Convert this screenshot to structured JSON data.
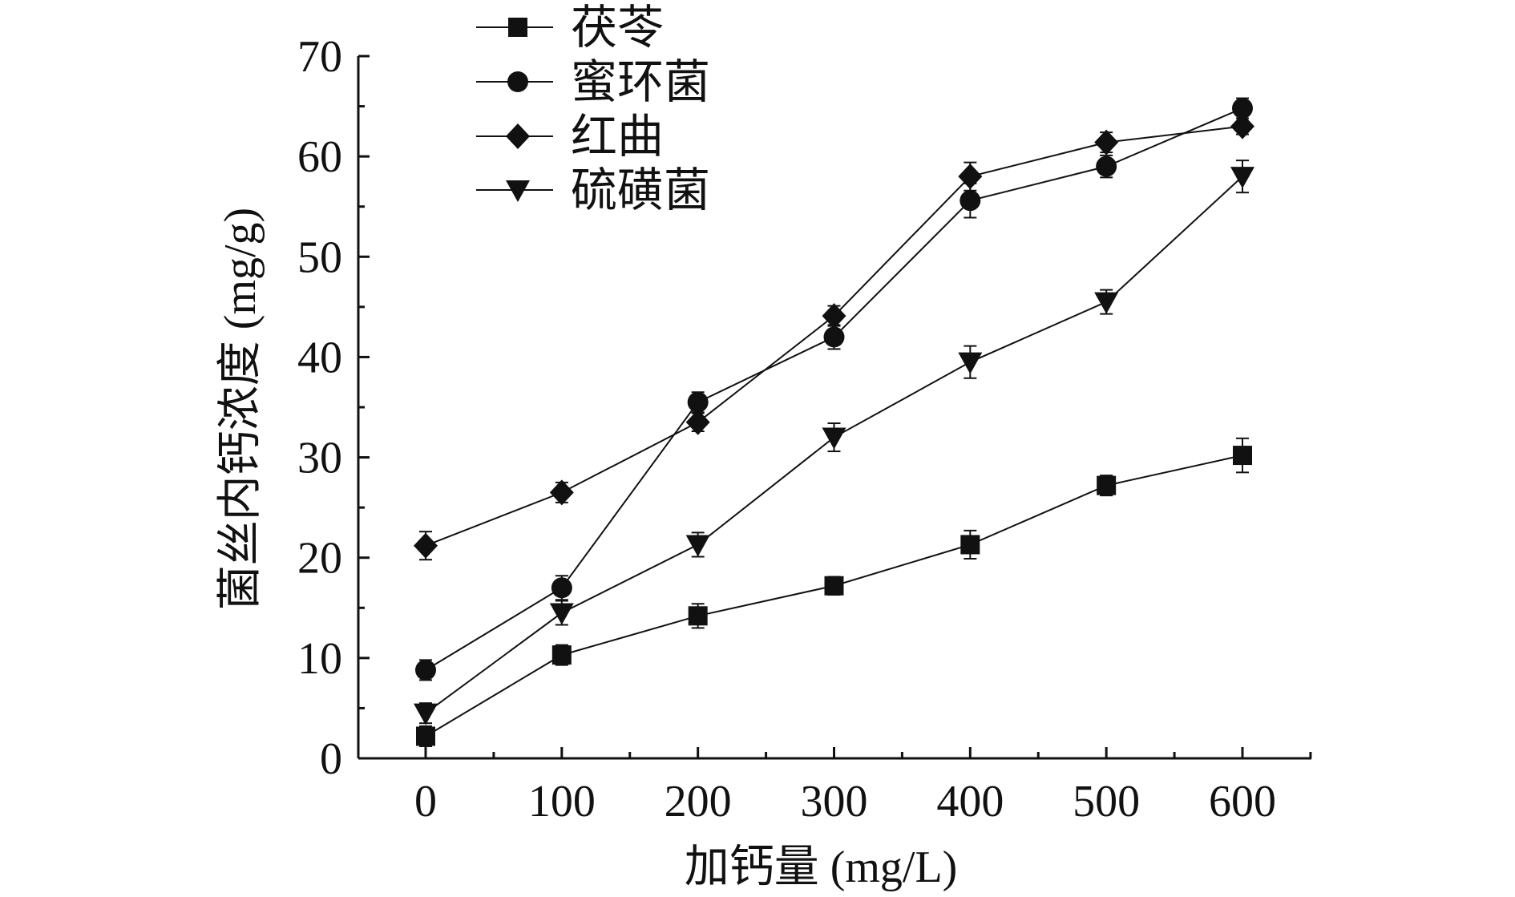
{
  "chart_data": {
    "type": "line",
    "title": "",
    "xlabel": "加钙量 (mg/L)",
    "ylabel": "菌丝内钙浓度 (mg/g)",
    "x": [
      0,
      100,
      200,
      300,
      400,
      500,
      600
    ],
    "xticks": [
      "0",
      "100",
      "200",
      "300",
      "400",
      "500",
      "600"
    ],
    "yticks": [
      "0",
      "10",
      "20",
      "30",
      "40",
      "50",
      "60",
      "70"
    ],
    "xlim": [
      -50,
      650
    ],
    "ylim": [
      0,
      70
    ],
    "grid": false,
    "legend_position": "top-left",
    "series": [
      {
        "name": "茯苓",
        "marker": "square",
        "values": [
          2.2,
          10.3,
          14.2,
          17.2,
          21.3,
          27.2,
          30.2
        ],
        "errors": [
          1.0,
          1.0,
          1.2,
          0.9,
          1.4,
          1.0,
          1.7
        ]
      },
      {
        "name": "蜜环菌",
        "marker": "circle",
        "values": [
          8.8,
          17.0,
          35.5,
          42.0,
          55.6,
          59.0,
          64.8
        ],
        "errors": [
          1.0,
          1.2,
          1.0,
          1.2,
          1.7,
          1.1,
          1.0
        ]
      },
      {
        "name": "红曲",
        "marker": "diamond",
        "values": [
          21.2,
          26.5,
          33.5,
          44.1,
          58.0,
          61.4,
          63.0
        ],
        "errors": [
          1.4,
          1.0,
          0.9,
          1.0,
          1.4,
          1.0,
          0.8
        ]
      },
      {
        "name": "硫磺菌",
        "marker": "triangle-down",
        "values": [
          4.5,
          14.5,
          21.3,
          32.0,
          39.5,
          45.5,
          58.0
        ],
        "errors": [
          1.0,
          1.2,
          1.2,
          1.4,
          1.6,
          1.2,
          1.6
        ]
      }
    ],
    "color": "#111111"
  }
}
